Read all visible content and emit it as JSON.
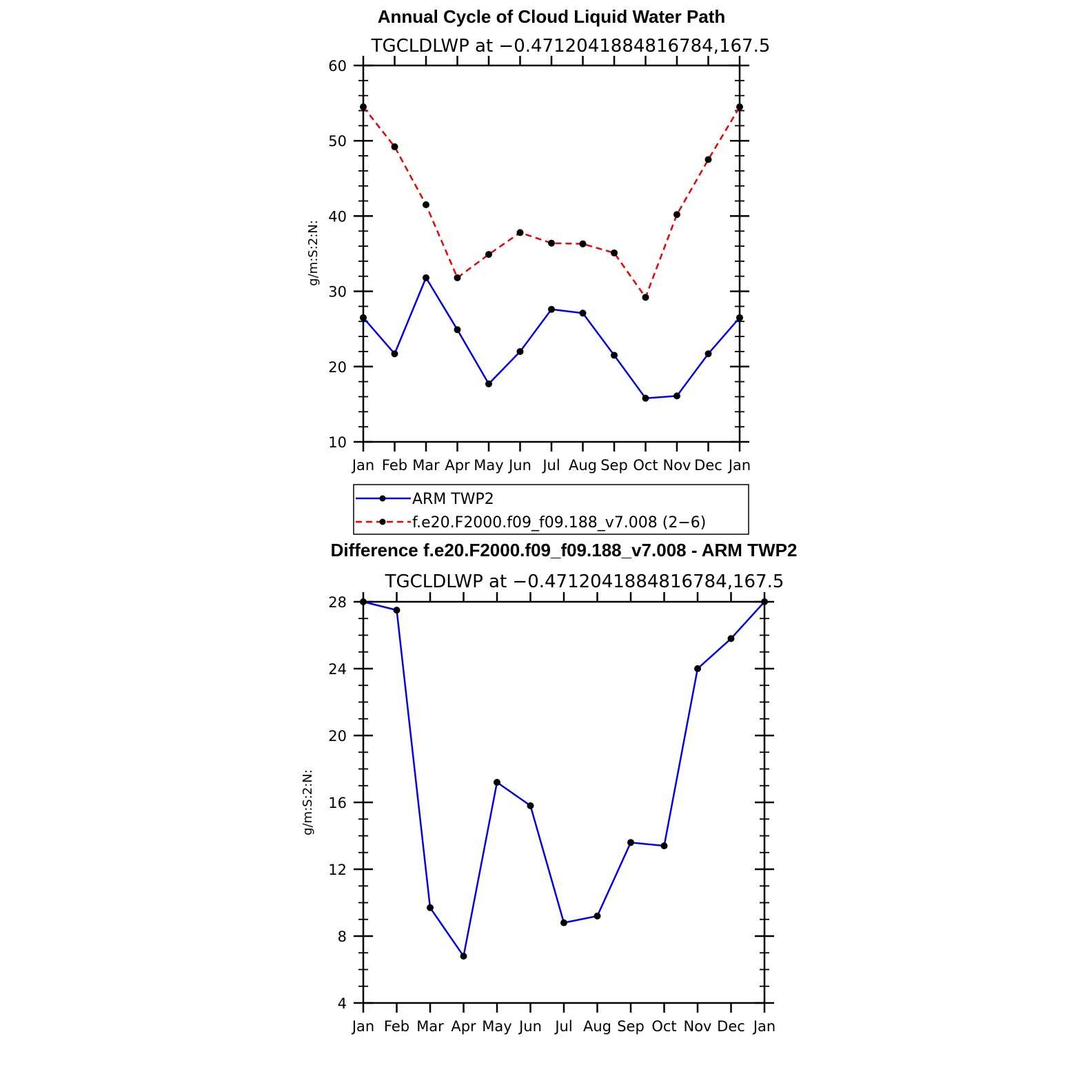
{
  "chart_data": [
    {
      "type": "line",
      "title": "Annual Cycle of Cloud Liquid Water Path",
      "subtitle": "TGCLDLWP at −0.4712041884816784,167.5",
      "ylabel": "g/m:S:2:N:",
      "xlabel": "",
      "ylim": [
        10,
        60
      ],
      "yticks": [
        10,
        20,
        30,
        40,
        50,
        60
      ],
      "categories": [
        "Jan",
        "Feb",
        "Mar",
        "Apr",
        "May",
        "Jun",
        "Jul",
        "Aug",
        "Sep",
        "Oct",
        "Nov",
        "Dec",
        "Jan"
      ],
      "grid": false,
      "legend_position": "bottom",
      "series": [
        {
          "name": "ARM  TWP2",
          "color": "#0000ee",
          "dash": "solid",
          "values": [
            26.5,
            21.7,
            31.8,
            24.9,
            17.7,
            22.0,
            27.6,
            27.1,
            21.5,
            15.8,
            16.1,
            21.7,
            26.5
          ]
        },
        {
          "name": "f.e20.F2000.f09_f09.188_v7.008 (2−6)",
          "color": "#ee0000",
          "dash": "dashed",
          "values": [
            54.5,
            49.2,
            41.5,
            31.8,
            34.9,
            37.8,
            36.4,
            36.3,
            35.1,
            29.2,
            40.2,
            47.5,
            54.5
          ]
        }
      ]
    },
    {
      "type": "line",
      "title": "Difference f.e20.F2000.f09_f09.188_v7.008 - ARM TWP2",
      "subtitle": "TGCLDLWP at −0.4712041884816784,167.5",
      "ylabel": "g/m:S:2:N:",
      "xlabel": "",
      "ylim": [
        4,
        28
      ],
      "yticks": [
        4,
        8,
        12,
        16,
        20,
        24,
        28
      ],
      "categories": [
        "Jan",
        "Feb",
        "Mar",
        "Apr",
        "May",
        "Jun",
        "Jul",
        "Aug",
        "Sep",
        "Oct",
        "Nov",
        "Dec",
        "Jan"
      ],
      "grid": false,
      "series": [
        {
          "color": "#0000ee",
          "dash": "solid",
          "values": [
            28.0,
            27.5,
            9.7,
            6.8,
            17.2,
            15.8,
            8.8,
            9.2,
            13.6,
            13.4,
            24.0,
            25.8,
            28.0
          ]
        }
      ]
    }
  ]
}
